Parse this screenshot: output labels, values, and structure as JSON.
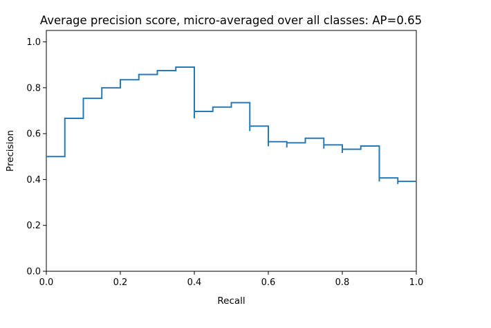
{
  "chart_data": {
    "type": "line",
    "drawstyle": "steps-post",
    "title": "Average precision score, micro-averaged over all classes: AP=0.65",
    "xlabel": "Recall",
    "ylabel": "Precision",
    "xlim": [
      0.0,
      1.0
    ],
    "ylim": [
      0.0,
      1.05
    ],
    "xticks": [
      "0.0",
      "0.2",
      "0.4",
      "0.6",
      "0.8",
      "1.0"
    ],
    "yticks": [
      "0.0",
      "0.2",
      "0.4",
      "0.6",
      "0.8",
      "1.0"
    ],
    "grid": false,
    "legend": "none",
    "series": [
      {
        "color": "#2878b5",
        "points": [
          [
            0.0,
            0.5
          ],
          [
            0.05,
            0.5
          ],
          [
            0.05,
            0.667
          ],
          [
            0.1,
            0.667
          ],
          [
            0.1,
            0.754
          ],
          [
            0.15,
            0.754
          ],
          [
            0.15,
            0.8
          ],
          [
            0.2,
            0.8
          ],
          [
            0.2,
            0.835
          ],
          [
            0.25,
            0.835
          ],
          [
            0.25,
            0.858
          ],
          [
            0.3,
            0.858
          ],
          [
            0.3,
            0.875
          ],
          [
            0.35,
            0.875
          ],
          [
            0.35,
            0.89
          ],
          [
            0.4,
            0.89
          ],
          [
            0.4,
            0.667
          ],
          [
            0.4,
            0.697
          ],
          [
            0.45,
            0.697
          ],
          [
            0.45,
            0.716
          ],
          [
            0.5,
            0.716
          ],
          [
            0.5,
            0.735
          ],
          [
            0.55,
            0.735
          ],
          [
            0.55,
            0.611
          ],
          [
            0.55,
            0.633
          ],
          [
            0.6,
            0.633
          ],
          [
            0.6,
            0.545
          ],
          [
            0.6,
            0.565
          ],
          [
            0.65,
            0.565
          ],
          [
            0.65,
            0.54
          ],
          [
            0.65,
            0.56
          ],
          [
            0.7,
            0.56
          ],
          [
            0.7,
            0.58
          ],
          [
            0.75,
            0.58
          ],
          [
            0.75,
            0.535
          ],
          [
            0.75,
            0.551
          ],
          [
            0.8,
            0.551
          ],
          [
            0.8,
            0.516
          ],
          [
            0.8,
            0.532
          ],
          [
            0.85,
            0.532
          ],
          [
            0.85,
            0.546
          ],
          [
            0.9,
            0.546
          ],
          [
            0.9,
            0.391
          ],
          [
            0.9,
            0.407
          ],
          [
            0.95,
            0.407
          ],
          [
            0.95,
            0.38
          ],
          [
            0.95,
            0.392
          ],
          [
            1.0,
            0.392
          ]
        ]
      }
    ]
  }
}
